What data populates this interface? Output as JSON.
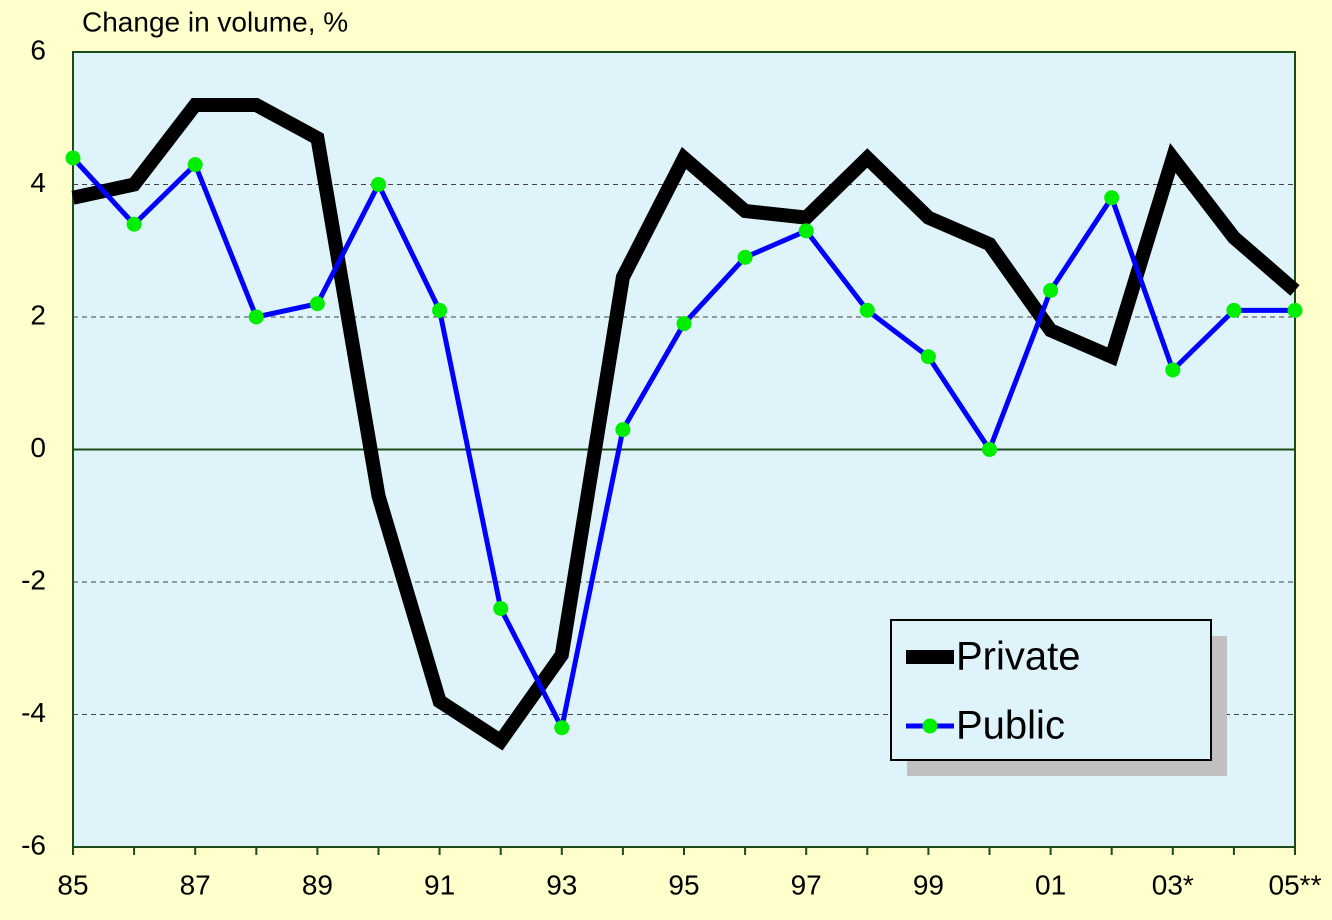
{
  "chart_data": {
    "type": "line",
    "title": "Change in volume, %",
    "categories": [
      "85",
      null,
      "87",
      null,
      "89",
      null,
      "91",
      null,
      "93",
      null,
      "95",
      null,
      "97",
      null,
      "99",
      null,
      "01",
      null,
      "03*",
      null,
      "05**"
    ],
    "series": [
      {
        "name": "Private",
        "color": "#000000",
        "values": [
          3.8,
          4.0,
          5.2,
          5.2,
          4.7,
          -0.7,
          -3.8,
          -4.4,
          -3.1,
          2.6,
          4.4,
          3.6,
          3.5,
          4.4,
          3.5,
          3.1,
          1.8,
          1.4,
          4.4,
          3.2,
          2.4
        ]
      },
      {
        "name": "Public",
        "color": "#0000ff",
        "marker_color": "#00ee00",
        "values": [
          4.4,
          3.4,
          4.3,
          2.0,
          2.2,
          4.0,
          2.1,
          -2.4,
          -4.2,
          0.3,
          1.9,
          2.9,
          3.3,
          2.1,
          1.4,
          0,
          2.4,
          3.8,
          1.2,
          2.1,
          2.1
        ]
      }
    ],
    "ylim": [
      -6,
      6
    ],
    "yticks": [
      -6,
      -4,
      -2,
      0,
      2,
      4,
      6
    ],
    "grid": true
  }
}
